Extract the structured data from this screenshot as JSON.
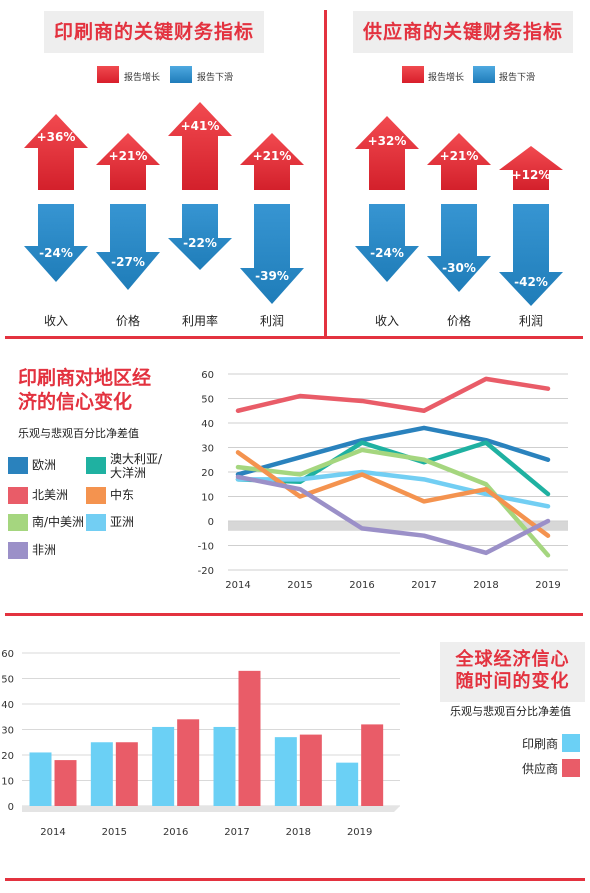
{
  "top": {
    "legend": {
      "up_label": "报告增长",
      "down_label": "报告下滑",
      "up_color": "#e8323c",
      "down_color": "#2e8fcc"
    },
    "printers": {
      "title": "印刷商的关键财务指标",
      "items": [
        {
          "label": "收入",
          "up": "+36%",
          "down": "-24%"
        },
        {
          "label": "价格",
          "up": "+21%",
          "down": "-27%"
        },
        {
          "label": "利用率",
          "up": "+41%",
          "down": "-22%"
        },
        {
          "label": "利润",
          "up": "+21%",
          "down": "-39%"
        }
      ]
    },
    "suppliers": {
      "title": "供应商的关键财务指标",
      "items": [
        {
          "label": "收入",
          "up": "+32%",
          "down": "-24%"
        },
        {
          "label": "价格",
          "up": "+21%",
          "down": "-30%"
        },
        {
          "label": "利润",
          "up": "+12%",
          "down": "-42%"
        }
      ]
    }
  },
  "regional": {
    "title_line1": "印刷商对地区经",
    "title_line2": "济的信心变化",
    "subtitle": "乐观与悲观百分比净差值",
    "legend": [
      {
        "name": "欧洲",
        "color": "#2a82bd"
      },
      {
        "name": "澳大利亚/大洋洲",
        "line1": "澳大利亚/",
        "line2": "大洋洲",
        "color": "#1fb1a1"
      },
      {
        "name": "北美洲",
        "color": "#e95c68"
      },
      {
        "name": "中东",
        "color": "#f4934f"
      },
      {
        "name": "南/中美洲",
        "color": "#a5d67f"
      },
      {
        "name": "亚洲",
        "color": "#72cef3"
      },
      {
        "name": "非洲",
        "color": "#9b90c8"
      }
    ]
  },
  "global": {
    "title_line1": "全球经济信心",
    "title_line2": "随时间的变化",
    "subtitle": "乐观与悲观百分比净差值",
    "legend": [
      {
        "name": "印刷商",
        "color": "#6bd0f5"
      },
      {
        "name": "供应商",
        "color": "#e95c68"
      }
    ]
  },
  "chart_data": [
    {
      "type": "line",
      "x": [
        "2014",
        "2015",
        "2016",
        "2017",
        "2018",
        "2019"
      ],
      "ylim": [
        -20,
        60
      ],
      "yticks": [
        "60",
        "50",
        "40",
        "30",
        "20",
        "10",
        "0",
        "-10",
        "-20"
      ],
      "series": [
        {
          "name": "北美洲",
          "color": "#e95c68",
          "values": [
            45,
            51,
            49,
            45,
            58,
            54
          ]
        },
        {
          "name": "欧洲",
          "color": "#2a82bd",
          "values": [
            19,
            26,
            33,
            38,
            33,
            25
          ]
        },
        {
          "name": "澳大利亚/大洋洲",
          "color": "#1fb1a1",
          "values": [
            17,
            16,
            32,
            24,
            32,
            11
          ]
        },
        {
          "name": "南/中美洲",
          "color": "#a5d67f",
          "values": [
            22,
            19,
            29,
            25,
            15,
            -14
          ]
        },
        {
          "name": "亚洲",
          "color": "#72cef3",
          "values": [
            17,
            17,
            20,
            17,
            11,
            6
          ]
        },
        {
          "name": "中东",
          "color": "#f4934f",
          "values": [
            28,
            10,
            19,
            8,
            13,
            -6
          ]
        },
        {
          "name": "非洲",
          "color": "#9b90c8",
          "values": [
            18,
            13,
            -3,
            -6,
            -13,
            0
          ]
        }
      ]
    },
    {
      "type": "bar",
      "categories": [
        "2014",
        "2015",
        "2016",
        "2017",
        "2018",
        "2019"
      ],
      "ylim": [
        0,
        60
      ],
      "yticks": [
        "60",
        "50",
        "40",
        "30",
        "20",
        "10",
        "0"
      ],
      "series": [
        {
          "name": "印刷商",
          "color": "#6bd0f5",
          "values": [
            21,
            25,
            31,
            31,
            27,
            17
          ]
        },
        {
          "name": "供应商",
          "color": "#e95c68",
          "values": [
            18,
            25,
            34,
            53,
            28,
            32
          ]
        }
      ]
    }
  ]
}
